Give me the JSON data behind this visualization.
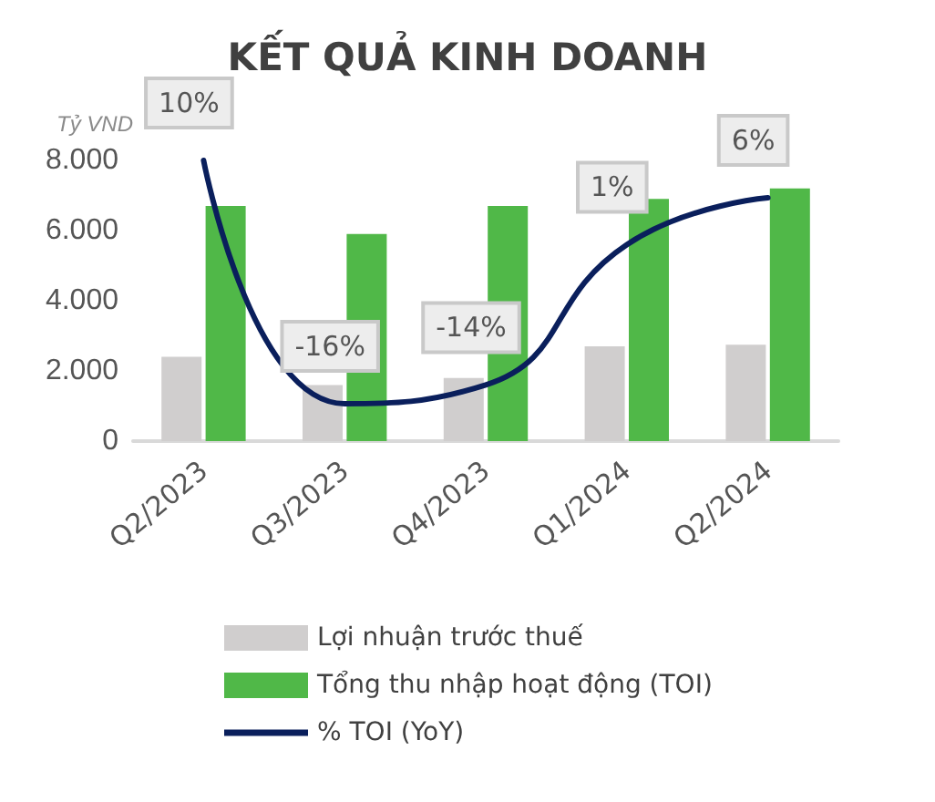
{
  "chart_data": {
    "type": "bar",
    "title": "KẾT QUẢ KINH DOANH",
    "ylabel": "Tỷ VND",
    "categories": [
      "Q2/2023",
      "Q3/2023",
      "Q4/2023",
      "Q1/2024",
      "Q2/2024"
    ],
    "series": [
      {
        "name": "Lợi nhuận trước thuế",
        "color": "#d0cece",
        "values": [
          2400,
          1600,
          1800,
          2700,
          2750
        ]
      },
      {
        "name": "Tổng thu nhập hoạt động (TOI)",
        "color": "#50b848",
        "values": [
          6700,
          5900,
          6700,
          6900,
          7200
        ]
      },
      {
        "name": "% TOI (YoY)",
        "type": "line",
        "axis": "y2",
        "color": "#0a1f5c",
        "values": [
          10,
          -16,
          -14,
          1,
          6
        ],
        "value_labels": [
          "10%",
          "-16%",
          "-14%",
          "1%",
          "6%"
        ]
      }
    ],
    "ylim": [
      0,
      8000
    ],
    "yticks": [
      {
        "value": 0,
        "label": "0"
      },
      {
        "value": 2000,
        "label": "2.000"
      },
      {
        "value": 4000,
        "label": "4.000"
      },
      {
        "value": 6000,
        "label": "6.000"
      },
      {
        "value": 8000,
        "label": "8.000"
      }
    ],
    "tick_labels": "xy",
    "grid": false,
    "legend": "bottom",
    "marker": "none",
    "line_style": "solid"
  }
}
